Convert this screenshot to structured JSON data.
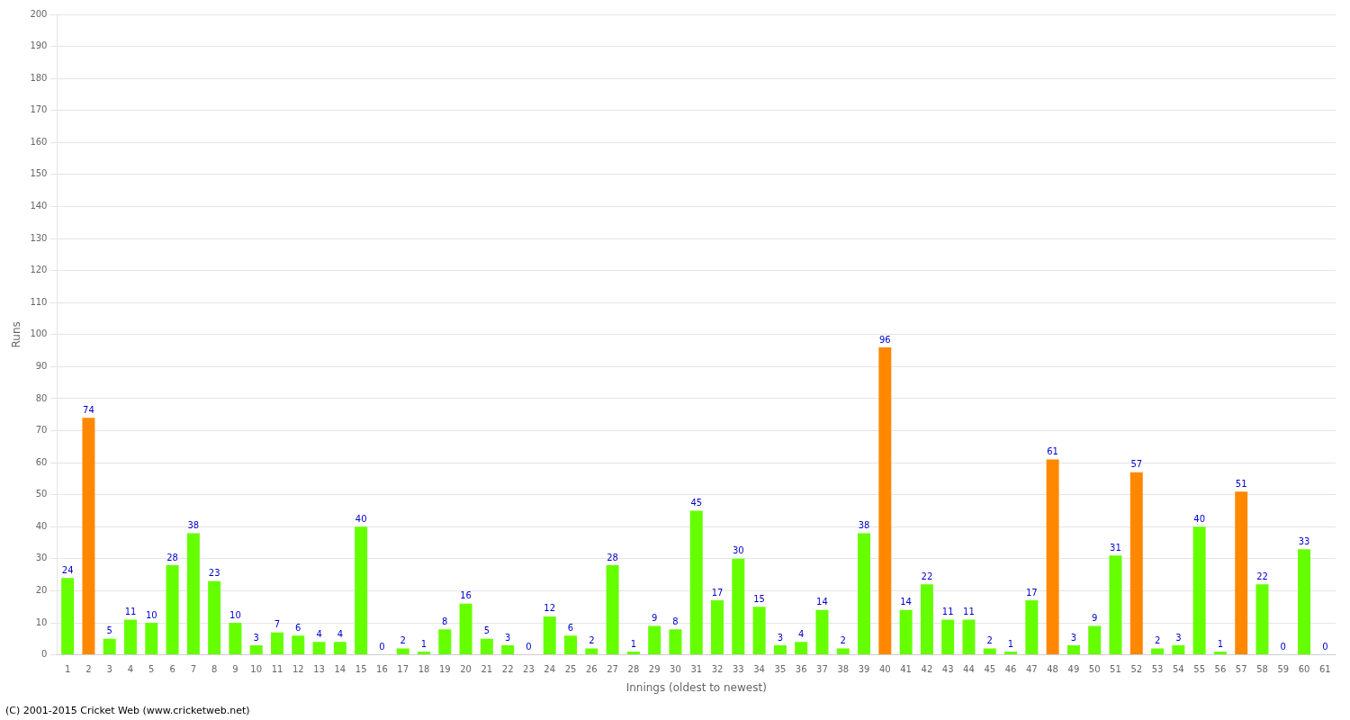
{
  "chart_data": {
    "type": "bar",
    "xlabel": "Innings (oldest to newest)",
    "ylabel": "Runs",
    "annotations": [
      "(C) 2001-2015 Cricket Web (www.cricketweb.net)"
    ],
    "categories": [
      "1",
      "2",
      "3",
      "4",
      "5",
      "6",
      "7",
      "8",
      "9",
      "10",
      "11",
      "12",
      "13",
      "14",
      "15",
      "16",
      "17",
      "18",
      "19",
      "20",
      "21",
      "22",
      "23",
      "24",
      "25",
      "26",
      "27",
      "28",
      "29",
      "30",
      "31",
      "32",
      "33",
      "34",
      "35",
      "36",
      "37",
      "38",
      "39",
      "40",
      "41",
      "42",
      "43",
      "44",
      "45",
      "46",
      "47",
      "48",
      "49",
      "50",
      "51",
      "52",
      "53",
      "54",
      "55",
      "56",
      "57",
      "58",
      "59",
      "60",
      "61"
    ],
    "values": [
      24,
      74,
      5,
      11,
      10,
      28,
      38,
      23,
      10,
      3,
      7,
      6,
      4,
      4,
      40,
      0,
      2,
      1,
      8,
      16,
      5,
      3,
      0,
      12,
      6,
      2,
      28,
      1,
      9,
      8,
      45,
      17,
      30,
      15,
      3,
      4,
      14,
      2,
      38,
      96,
      14,
      22,
      11,
      11,
      2,
      1,
      17,
      61,
      3,
      9,
      31,
      57,
      2,
      3,
      40,
      1,
      51,
      22,
      0,
      33,
      0
    ],
    "colors": [
      "#66ff00",
      "#ff8800",
      "#66ff00",
      "#66ff00",
      "#66ff00",
      "#66ff00",
      "#66ff00",
      "#66ff00",
      "#66ff00",
      "#66ff00",
      "#66ff00",
      "#66ff00",
      "#66ff00",
      "#66ff00",
      "#66ff00",
      "#66ff00",
      "#66ff00",
      "#66ff00",
      "#66ff00",
      "#66ff00",
      "#66ff00",
      "#66ff00",
      "#66ff00",
      "#66ff00",
      "#66ff00",
      "#66ff00",
      "#66ff00",
      "#66ff00",
      "#66ff00",
      "#66ff00",
      "#66ff00",
      "#66ff00",
      "#66ff00",
      "#66ff00",
      "#66ff00",
      "#66ff00",
      "#66ff00",
      "#66ff00",
      "#66ff00",
      "#ff8800",
      "#66ff00",
      "#66ff00",
      "#66ff00",
      "#66ff00",
      "#66ff00",
      "#66ff00",
      "#66ff00",
      "#ff8800",
      "#66ff00",
      "#66ff00",
      "#66ff00",
      "#ff8800",
      "#66ff00",
      "#66ff00",
      "#66ff00",
      "#66ff00",
      "#ff8800",
      "#66ff00",
      "#66ff00",
      "#66ff00",
      "#66ff00"
    ],
    "ylim": [
      0,
      200
    ],
    "yticks": [
      0,
      10,
      20,
      30,
      40,
      50,
      60,
      70,
      80,
      90,
      100,
      110,
      120,
      130,
      140,
      150,
      160,
      170,
      180,
      190,
      200
    ],
    "grid": true,
    "data_labels": true
  }
}
